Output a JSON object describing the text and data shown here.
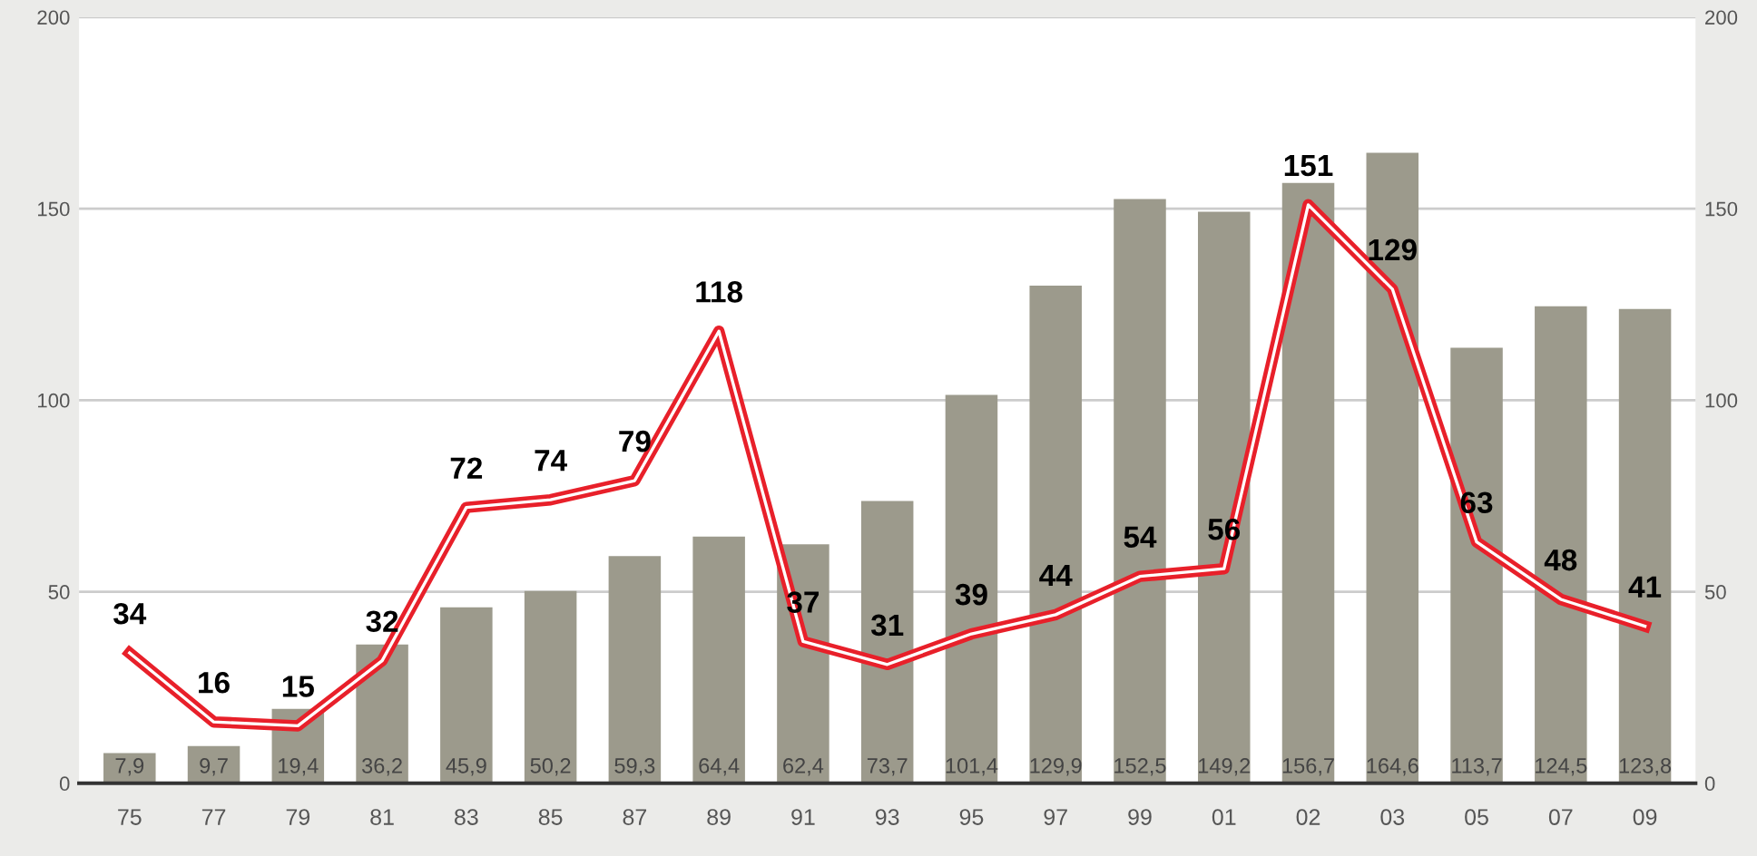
{
  "chart_data": {
    "type": "bar",
    "categories": [
      "75",
      "77",
      "79",
      "81",
      "83",
      "85",
      "87",
      "89",
      "91",
      "93",
      "95",
      "97",
      "99",
      "01",
      "02",
      "03",
      "05",
      "07",
      "09"
    ],
    "series": [
      {
        "color": "#9c9a8c",
        "values": [
          7.9,
          9.7,
          19.4,
          36.2,
          45.9,
          50.2,
          59.3,
          64.4,
          62.4,
          73.7,
          101.4,
          129.9,
          152.5,
          149.2,
          156.7,
          164.6,
          113.7,
          124.5,
          123.8
        ],
        "value_labels": [
          "7,9",
          "9,7",
          "19,4",
          "36,2",
          "45,9",
          "50,2",
          "59,3",
          "64,4",
          "62,4",
          "73,7",
          "101,4",
          "129,9",
          "152,5",
          "149,2",
          "156,7",
          "164,6",
          "113,7",
          "124,5",
          "123,8"
        ]
      },
      {
        "type": "line",
        "color": "#e8202a",
        "values": [
          34,
          16,
          15,
          32,
          72,
          74,
          79,
          118,
          37,
          31,
          39,
          44,
          54,
          56,
          151,
          129,
          63,
          48,
          41
        ],
        "value_labels": [
          "34",
          "16",
          "15",
          "32",
          "72",
          "74",
          "79",
          "118",
          "37",
          "31",
          "39",
          "44",
          "54",
          "56",
          "151",
          "129",
          "63",
          "48",
          "41"
        ]
      }
    ],
    "ylim": [
      0,
      200
    ],
    "yticks": [
      0,
      50,
      100,
      150,
      200
    ],
    "y2lim": [
      0,
      200
    ],
    "y2ticks": [
      0,
      50,
      100,
      150,
      200
    ],
    "grid": "y",
    "marker": "none",
    "line_style": "solid"
  }
}
